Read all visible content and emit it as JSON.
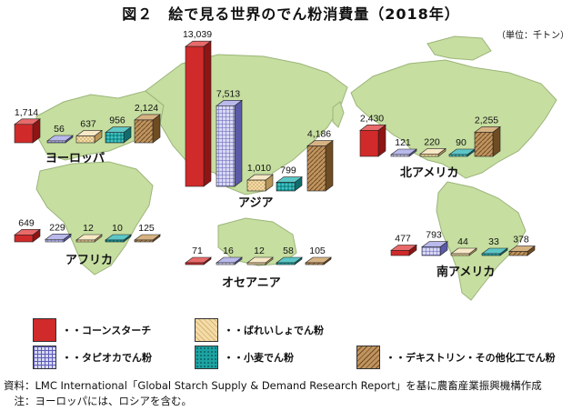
{
  "title": "図２　絵で見る世界のでん粉消費量（2018年）",
  "unit": "（単位：千トン）",
  "colors": {
    "corn": "#d12a2a",
    "tapioca": "#8a8ad6",
    "potato": "#e9c98f",
    "wheat": "#1ea3a3",
    "other": "#a97f4b",
    "land": "#c6dea0",
    "land_stroke": "#9cb57a"
  },
  "legend": [
    {
      "key": "corn",
      "label": "・・コーンスターチ"
    },
    {
      "key": "potato",
      "label": "・・ばれいしょでん粉"
    },
    {
      "key": "tapioca",
      "label": "・・タピオカでん粉"
    },
    {
      "key": "wheat",
      "label": "・・小麦でん粉"
    },
    {
      "key": "other",
      "label": "・・デキストリン・その他化工でん粉"
    }
  ],
  "chart_data": {
    "type": "bar",
    "title": "図２　絵で見る世界のでん粉消費量（2018年）",
    "unit": "千トン",
    "series_keys": [
      "corn",
      "tapioca",
      "potato",
      "wheat",
      "other"
    ],
    "regions": [
      {
        "name": "ヨーロッパ",
        "values": {
          "corn": 1714,
          "tapioca": 56,
          "potato": 637,
          "wheat": 956,
          "other": 2124
        },
        "labels": {
          "corn": "1,714",
          "tapioca": "56",
          "potato": "637",
          "wheat": "956",
          "other": "2,124"
        }
      },
      {
        "name": "アジア",
        "values": {
          "corn": 13039,
          "tapioca": 7513,
          "potato": 1010,
          "wheat": 799,
          "other": 4186
        },
        "labels": {
          "corn": "13,039",
          "tapioca": "7,513",
          "potato": "1,010",
          "wheat": "799",
          "other": "4,186"
        }
      },
      {
        "name": "北アメリカ",
        "values": {
          "corn": 2430,
          "tapioca": 121,
          "potato": 220,
          "wheat": 90,
          "other": 2255
        },
        "labels": {
          "corn": "2,430",
          "tapioca": "121",
          "potato": "220",
          "wheat": "90",
          "other": "2,255"
        }
      },
      {
        "name": "アフリカ",
        "values": {
          "corn": 649,
          "tapioca": 229,
          "potato": 12,
          "wheat": 10,
          "other": 125
        },
        "labels": {
          "corn": "649",
          "tapioca": "229",
          "potato": "12",
          "wheat": "10",
          "other": "125"
        }
      },
      {
        "name": "オセアニア",
        "values": {
          "corn": 71,
          "tapioca": 16,
          "potato": 12,
          "wheat": 58,
          "other": 105
        },
        "labels": {
          "corn": "71",
          "tapioca": "16",
          "potato": "12",
          "wheat": "58",
          "other": "105"
        }
      },
      {
        "name": "南アメリカ",
        "values": {
          "corn": 477,
          "tapioca": 793,
          "potato": 44,
          "wheat": 33,
          "other": 378
        },
        "labels": {
          "corn": "477",
          "tapioca": "793",
          "potato": "44",
          "wheat": "33",
          "other": "378"
        }
      }
    ]
  },
  "sources": [
    "資料：LMC International「Global Starch Supply & Demand Research Report」を基に農畜産業振興機構作成",
    "　注：ヨーロッパには、ロシアを含む。"
  ]
}
